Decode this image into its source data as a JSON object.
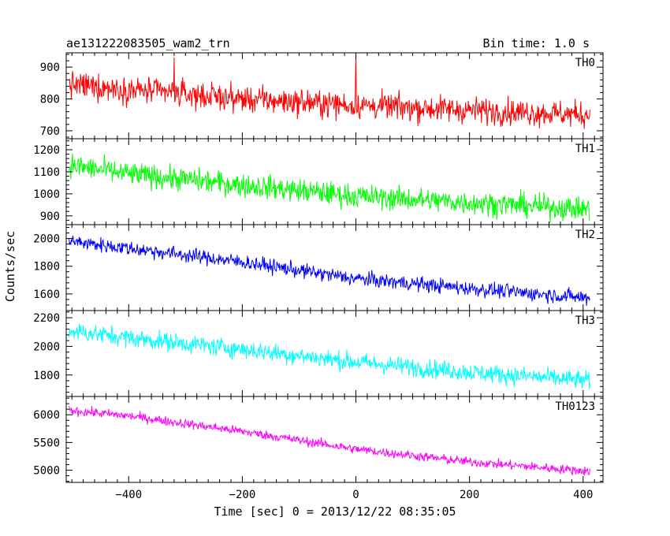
{
  "chart_data": {
    "type": "line",
    "title_left": "ae131222083505_wam2_trn",
    "title_right": "Bin time: 1.0 s",
    "xlabel": "Time [sec] 0 = 2013/12/22 08:35:05",
    "ylabel": "Counts/sec",
    "x_range": [
      -510,
      435
    ],
    "x_ticks": [
      -400,
      -200,
      0,
      200,
      400
    ],
    "x_tick_labels": [
      "−400",
      "−200",
      "0",
      "200",
      "400"
    ],
    "x_data_range": [
      -505,
      412
    ],
    "panels": [
      {
        "name": "TH0",
        "color": "#ff0000",
        "ylim": [
          675,
          945
        ],
        "yticks": [
          700,
          800,
          900
        ],
        "trend": [
          [
            -505,
            845
          ],
          [
            -400,
            830
          ],
          [
            -200,
            800
          ],
          [
            0,
            780
          ],
          [
            200,
            765
          ],
          [
            412,
            750
          ]
        ],
        "noise": 35,
        "spikes": [
          [
            0,
            945
          ],
          [
            -320,
            930
          ]
        ]
      },
      {
        "name": "TH1",
        "color": "#00ff00",
        "ylim": [
          860,
          1250
        ],
        "yticks": [
          900,
          1000,
          1100,
          1200
        ],
        "trend": [
          [
            -505,
            1130
          ],
          [
            -400,
            1090
          ],
          [
            -200,
            1040
          ],
          [
            0,
            990
          ],
          [
            200,
            960
          ],
          [
            412,
            930
          ]
        ],
        "noise": 45,
        "spikes": []
      },
      {
        "name": "TH2",
        "color": "#0000ff",
        "ylim": [
          1480,
          2100
        ],
        "yticks": [
          1600,
          1800,
          2000
        ],
        "trend": [
          [
            -505,
            1980
          ],
          [
            -400,
            1930
          ],
          [
            -200,
            1830
          ],
          [
            0,
            1710
          ],
          [
            200,
            1640
          ],
          [
            412,
            1570
          ]
        ],
        "noise": 45,
        "spikes": []
      },
      {
        "name": "TH3",
        "color": "#00ffff",
        "ylim": [
          1650,
          2250
        ],
        "yticks": [
          1800,
          2000,
          2200
        ],
        "trend": [
          [
            -505,
            2110
          ],
          [
            -400,
            2060
          ],
          [
            -200,
            1980
          ],
          [
            0,
            1890
          ],
          [
            200,
            1820
          ],
          [
            412,
            1760
          ]
        ],
        "noise": 55,
        "spikes": []
      },
      {
        "name": "TH0123",
        "color": "#ff00ff",
        "ylim": [
          4780,
          6330
        ],
        "yticks": [
          5000,
          5500,
          6000
        ],
        "trend": [
          [
            -505,
            6080
          ],
          [
            -400,
            5980
          ],
          [
            -200,
            5700
          ],
          [
            0,
            5380
          ],
          [
            200,
            5150
          ],
          [
            412,
            4980
          ]
        ],
        "noise": 70,
        "spikes": []
      }
    ]
  }
}
